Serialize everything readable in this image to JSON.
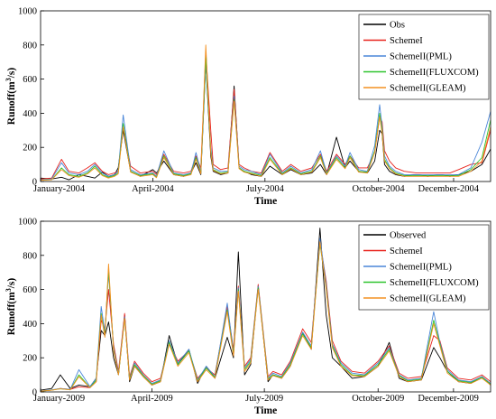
{
  "chart_data": [
    {
      "type": "line",
      "title": "",
      "xlabel": "Time",
      "ylabel": "Runoff(m³/s)",
      "ylabel_main": "Runoff(m",
      "ylabel_sup": "3",
      "ylabel_tail": "/s)",
      "ylim": [
        0,
        1000
      ],
      "yticks": [
        0,
        200,
        400,
        600,
        800,
        1000
      ],
      "xlim": [
        "2004-01-01",
        "2004-12-31"
      ],
      "xtick_labels": [
        "January-2004",
        "April-2004",
        "July-2004",
        "October-2004",
        "December-2004"
      ],
      "xtick_dates": [
        "2004-01-01",
        "2004-04-01",
        "2004-07-01",
        "2004-10-01",
        "2004-12-01"
      ],
      "legend_position": "top-right",
      "dates": [
        "2004-01-01",
        "2004-01-10",
        "2004-01-18",
        "2004-01-24",
        "2004-02-01",
        "2004-02-08",
        "2004-02-14",
        "2004-02-20",
        "2004-02-25",
        "2004-03-01",
        "2004-03-04",
        "2004-03-08",
        "2004-03-14",
        "2004-03-22",
        "2004-04-01",
        "2004-04-04",
        "2004-04-10",
        "2004-04-18",
        "2004-04-26",
        "2004-05-02",
        "2004-05-06",
        "2004-05-10",
        "2004-05-14",
        "2004-05-18",
        "2004-05-20",
        "2004-05-26",
        "2004-06-01",
        "2004-06-06",
        "2004-06-10",
        "2004-06-14",
        "2004-06-20",
        "2004-06-28",
        "2004-07-05",
        "2004-07-15",
        "2004-07-22",
        "2004-07-30",
        "2004-08-08",
        "2004-08-15",
        "2004-08-20",
        "2004-08-28",
        "2004-09-04",
        "2004-09-08",
        "2004-09-15",
        "2004-09-22",
        "2004-09-28",
        "2004-10-02",
        "2004-10-04",
        "2004-10-06",
        "2004-10-10",
        "2004-10-15",
        "2004-10-22",
        "2004-11-01",
        "2004-11-10",
        "2004-11-20",
        "2004-11-28",
        "2004-12-05",
        "2004-12-15",
        "2004-12-24",
        "2004-12-31"
      ],
      "series": [
        {
          "name": "Obs",
          "color": "#000000",
          "values": [
            20,
            15,
            25,
            10,
            40,
            30,
            20,
            55,
            30,
            40,
            80,
            300,
            60,
            30,
            70,
            50,
            120,
            40,
            30,
            50,
            110,
            40,
            700,
            150,
            60,
            40,
            50,
            560,
            80,
            60,
            40,
            30,
            90,
            40,
            70,
            40,
            50,
            100,
            40,
            260,
            80,
            120,
            60,
            50,
            120,
            300,
            280,
            100,
            60,
            40,
            30,
            40,
            30,
            40,
            30,
            40,
            60,
            100,
            190
          ]
        },
        {
          "name": "SchemeI",
          "color": "#e8221c",
          "values": [
            15,
            20,
            130,
            60,
            50,
            80,
            110,
            60,
            40,
            50,
            60,
            330,
            90,
            50,
            60,
            40,
            160,
            60,
            50,
            60,
            150,
            80,
            760,
            300,
            100,
            70,
            80,
            540,
            100,
            80,
            60,
            50,
            170,
            60,
            100,
            60,
            80,
            160,
            60,
            160,
            100,
            150,
            80,
            80,
            170,
            380,
            350,
            180,
            120,
            80,
            60,
            50,
            50,
            50,
            50,
            70,
            100,
            110,
            300
          ]
        },
        {
          "name": "SchemeII(PML)",
          "color": "#4a86d8",
          "values": [
            10,
            15,
            110,
            50,
            40,
            60,
            100,
            50,
            30,
            40,
            60,
            390,
            70,
            40,
            50,
            30,
            180,
            50,
            40,
            50,
            170,
            60,
            700,
            200,
            80,
            60,
            60,
            500,
            90,
            70,
            60,
            40,
            160,
            50,
            90,
            50,
            70,
            180,
            50,
            150,
            90,
            170,
            70,
            60,
            210,
            450,
            320,
            150,
            90,
            60,
            40,
            40,
            40,
            40,
            40,
            40,
            80,
            230,
            410
          ]
        },
        {
          "name": "SchemeII(FLUXCOM)",
          "color": "#2ec42e",
          "values": [
            8,
            10,
            80,
            40,
            30,
            50,
            90,
            40,
            25,
            35,
            50,
            340,
            60,
            35,
            45,
            25,
            150,
            45,
            35,
            45,
            140,
            50,
            730,
            180,
            70,
            50,
            55,
            480,
            80,
            60,
            50,
            35,
            140,
            45,
            80,
            45,
            60,
            150,
            45,
            140,
            80,
            150,
            60,
            55,
            180,
            400,
            300,
            130,
            80,
            50,
            35,
            35,
            35,
            35,
            35,
            35,
            70,
            140,
            360
          ]
        },
        {
          "name": "SchemeII(GLEAM)",
          "color": "#f39121",
          "values": [
            8,
            10,
            70,
            35,
            25,
            45,
            80,
            35,
            20,
            30,
            45,
            320,
            55,
            30,
            40,
            22,
            140,
            40,
            30,
            40,
            130,
            45,
            800,
            170,
            65,
            45,
            50,
            470,
            75,
            55,
            45,
            30,
            130,
            40,
            75,
            40,
            55,
            140,
            40,
            130,
            75,
            140,
            55,
            50,
            170,
            380,
            280,
            120,
            75,
            45,
            30,
            30,
            30,
            30,
            30,
            30,
            60,
            120,
            320
          ]
        }
      ]
    },
    {
      "type": "line",
      "title": "",
      "xlabel": "Time",
      "ylabel": "Runoff(m³/s)",
      "ylabel_main": "Runoff(m",
      "ylabel_sup": "3",
      "ylabel_tail": "/s)",
      "ylim": [
        0,
        1000
      ],
      "yticks": [
        0,
        200,
        400,
        600,
        800,
        1000
      ],
      "xlim": [
        "2009-01-01",
        "2009-12-31"
      ],
      "xtick_labels": [
        "January-2009",
        "April-2009",
        "July-2009",
        "October-2009",
        "December-2009"
      ],
      "xtick_dates": [
        "2009-01-01",
        "2009-04-01",
        "2009-07-01",
        "2009-10-01",
        "2009-12-01"
      ],
      "legend_position": "top-right",
      "dates": [
        "2009-01-01",
        "2009-01-10",
        "2009-01-17",
        "2009-01-25",
        "2009-02-01",
        "2009-02-10",
        "2009-02-15",
        "2009-02-19",
        "2009-02-22",
        "2009-02-25",
        "2009-03-01",
        "2009-03-05",
        "2009-03-10",
        "2009-03-14",
        "2009-03-18",
        "2009-03-25",
        "2009-04-01",
        "2009-04-08",
        "2009-04-15",
        "2009-04-22",
        "2009-05-01",
        "2009-05-08",
        "2009-05-15",
        "2009-05-22",
        "2009-06-01",
        "2009-06-06",
        "2009-06-10",
        "2009-06-15",
        "2009-06-20",
        "2009-06-26",
        "2009-07-04",
        "2009-07-08",
        "2009-07-15",
        "2009-07-22",
        "2009-08-01",
        "2009-08-08",
        "2009-08-15",
        "2009-08-20",
        "2009-08-25",
        "2009-09-01",
        "2009-09-10",
        "2009-09-20",
        "2009-10-01",
        "2009-10-10",
        "2009-10-18",
        "2009-10-25",
        "2009-11-05",
        "2009-11-15",
        "2009-11-20",
        "2009-11-26",
        "2009-12-05",
        "2009-12-15",
        "2009-12-24",
        "2009-12-31"
      ],
      "series": [
        {
          "name": "Observed",
          "color": "#000000",
          "values": [
            10,
            20,
            100,
            20,
            40,
            30,
            80,
            360,
            330,
            410,
            200,
            100,
            450,
            60,
            150,
            90,
            40,
            60,
            330,
            160,
            250,
            50,
            150,
            80,
            320,
            200,
            820,
            100,
            160,
            620,
            60,
            100,
            80,
            150,
            350,
            250,
            960,
            450,
            200,
            150,
            80,
            90,
            150,
            290,
            80,
            60,
            70,
            260,
            200,
            120,
            60,
            50,
            90,
            40
          ]
        },
        {
          "name": "SchemeI",
          "color": "#e8221c",
          "values": [
            5,
            10,
            20,
            15,
            30,
            25,
            60,
            420,
            370,
            600,
            280,
            120,
            460,
            90,
            180,
            110,
            60,
            80,
            290,
            180,
            240,
            80,
            140,
            100,
            500,
            250,
            620,
            150,
            200,
            630,
            90,
            120,
            100,
            180,
            370,
            290,
            880,
            650,
            300,
            180,
            120,
            110,
            180,
            270,
            110,
            80,
            90,
            330,
            300,
            140,
            80,
            70,
            100,
            60
          ]
        },
        {
          "name": "SchemeII(PML)",
          "color": "#4a86d8",
          "values": [
            5,
            12,
            20,
            15,
            130,
            30,
            80,
            500,
            350,
            700,
            260,
            110,
            440,
            80,
            170,
            100,
            50,
            70,
            300,
            170,
            250,
            70,
            150,
            90,
            520,
            230,
            610,
            140,
            190,
            620,
            80,
            110,
            90,
            170,
            350,
            270,
            900,
            630,
            280,
            170,
            110,
            100,
            170,
            260,
            100,
            70,
            80,
            470,
            290,
            130,
            70,
            60,
            90,
            50
          ]
        },
        {
          "name": "SchemeII(FLUXCOM)",
          "color": "#2ec42e",
          "values": [
            4,
            10,
            18,
            12,
            100,
            25,
            70,
            460,
            330,
            720,
            250,
            100,
            430,
            75,
            160,
            95,
            45,
            65,
            290,
            160,
            240,
            65,
            140,
            85,
            480,
            220,
            600,
            130,
            180,
            610,
            75,
            100,
            85,
            160,
            340,
            260,
            870,
            610,
            270,
            160,
            100,
            95,
            160,
            250,
            95,
            65,
            75,
            420,
            280,
            120,
            65,
            55,
            85,
            45
          ]
        },
        {
          "name": "SchemeII(GLEAM)",
          "color": "#f39121",
          "values": [
            4,
            10,
            18,
            12,
            90,
            25,
            60,
            450,
            320,
            750,
            240,
            100,
            430,
            70,
            150,
            90,
            40,
            60,
            280,
            150,
            230,
            60,
            130,
            80,
            470,
            210,
            590,
            120,
            170,
            600,
            70,
            95,
            80,
            150,
            330,
            250,
            880,
            600,
            260,
            150,
            95,
            90,
            150,
            240,
            90,
            60,
            70,
            400,
            270,
            110,
            60,
            50,
            80,
            40
          ]
        }
      ]
    }
  ]
}
